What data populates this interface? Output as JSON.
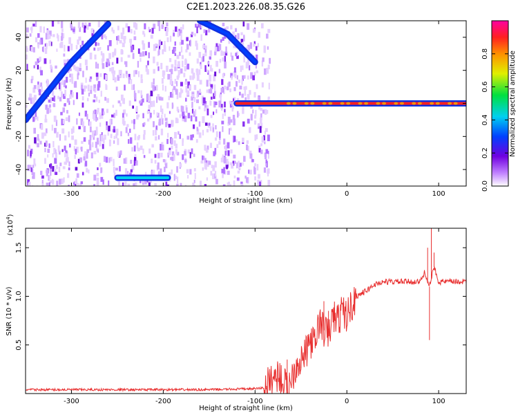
{
  "title": "C2E1.2023.226.08.35.G26",
  "colors": {
    "snr_line": "#e83030",
    "spine": "#000000",
    "background": "#ffffff"
  },
  "chart_data": [
    {
      "type": "heatmap",
      "name": "spectrogram",
      "xlabel": "Height of straight line (km)",
      "ylabel": "Frequency (Hz)",
      "xlim": [
        -350,
        130
      ],
      "ylim": [
        -50,
        50
      ],
      "xticks": [
        -300,
        -200,
        -100,
        0,
        100
      ],
      "yticks": [
        -40,
        -20,
        0,
        20,
        40
      ],
      "colorbar": {
        "label": "Normalized spectral amplitude",
        "range": [
          0,
          1
        ],
        "ticks": [
          0.0,
          0.2,
          0.4,
          0.6,
          0.8
        ],
        "colormap": "rainbow (white at 0, violet, blue, cyan, green, yellow, orange, red at 1)"
      },
      "features": [
        {
          "label": "rising tone",
          "x": [
            -350,
            -300,
            -260
          ],
          "y": [
            -10,
            25,
            48
          ],
          "amplitude": 0.4
        },
        {
          "label": "descending tone",
          "x": [
            -160,
            -130,
            -100
          ],
          "y": [
            50,
            42,
            25
          ],
          "amplitude": 0.35
        },
        {
          "label": "carrier line",
          "x": [
            -120,
            130
          ],
          "y": [
            0,
            0
          ],
          "amplitude": 0.9
        },
        {
          "label": "low band patch",
          "x": [
            -250,
            -195
          ],
          "y": [
            -45,
            -45
          ],
          "amplitude": 0.5
        }
      ]
    },
    {
      "type": "line",
      "name": "snr",
      "xlabel": "Height of straight line (km)",
      "ylabel": "SNR (10 * v/v)",
      "ylabel_multiplier": "(x10",
      "ylabel_multiplier_exp": "4",
      "ylabel_multiplier_close": ")",
      "xlim": [
        -350,
        130
      ],
      "ylim": [
        0,
        1.7
      ],
      "xticks": [
        -300,
        -200,
        -100,
        0,
        100
      ],
      "yticks": [
        0.5,
        1.0,
        1.5
      ],
      "series": [
        {
          "name": "SNR",
          "x": [
            -350,
            -300,
            -250,
            -200,
            -150,
            -100,
            -90,
            -75,
            -65,
            -55,
            -45,
            -40,
            -35,
            -30,
            -25,
            -20,
            -15,
            -10,
            -5,
            0,
            10,
            20,
            30,
            40,
            50,
            60,
            70,
            80,
            85,
            90,
            95,
            100,
            110,
            120,
            130
          ],
          "y": [
            0.04,
            0.04,
            0.04,
            0.04,
            0.04,
            0.05,
            0.06,
            0.2,
            0.05,
            0.3,
            0.4,
            0.55,
            0.5,
            0.75,
            0.65,
            0.6,
            0.8,
            0.75,
            0.85,
            0.8,
            1.0,
            1.05,
            1.12,
            1.15,
            1.15,
            1.15,
            1.15,
            1.15,
            1.25,
            1.1,
            1.3,
            1.15,
            1.15,
            1.15,
            1.15
          ],
          "spikes": [
            {
              "x": -65,
              "y": 0.35
            },
            {
              "x": -50,
              "y": 0.26
            },
            {
              "x": -25,
              "y": 0.95
            },
            {
              "x": -20,
              "y": 0.85
            },
            {
              "x": 90,
              "y": 0.55
            },
            {
              "x": 92,
              "y": 1.7
            },
            {
              "x": 95,
              "y": 1.45
            },
            {
              "x": 88,
              "y": 1.5
            }
          ]
        }
      ]
    }
  ]
}
